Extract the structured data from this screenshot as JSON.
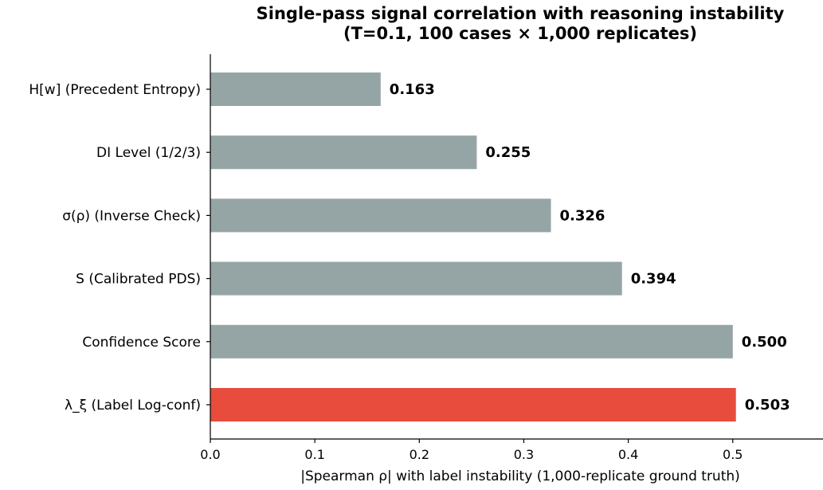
{
  "colors": {
    "default_bar": "#95a5a6",
    "highlight_bar": "#e74c3c",
    "axis": "#000000"
  },
  "chart_data": {
    "type": "bar",
    "orientation": "horizontal",
    "title": "Single-pass signal correlation with reasoning instability",
    "subtitle": "(T=0.1, 100 cases × 1,000 replicates)",
    "xlabel": "|Spearman ρ| with label instability (1,000-replicate ground truth)",
    "ylabel": "",
    "categories": [
      "H[w] (Precedent Entropy)",
      "DI Level (1/2/3)",
      "σ(ρ) (Inverse Check)",
      "S (Calibrated PDS)",
      "Confidence Score",
      "λ_ξ (Label Log-conf)"
    ],
    "values": [
      0.163,
      0.255,
      0.326,
      0.394,
      0.5,
      0.503
    ],
    "value_labels": [
      "0.163",
      "0.255",
      "0.326",
      "0.394",
      "0.500",
      "0.503"
    ],
    "highlight_index": 5,
    "xlim": [
      0,
      0.586
    ],
    "xticks": [
      0.0,
      0.1,
      0.2,
      0.3,
      0.4,
      0.5
    ],
    "xtick_labels": [
      "0.0",
      "0.1",
      "0.2",
      "0.3",
      "0.4",
      "0.5"
    ],
    "grid": false,
    "legend": "none"
  }
}
